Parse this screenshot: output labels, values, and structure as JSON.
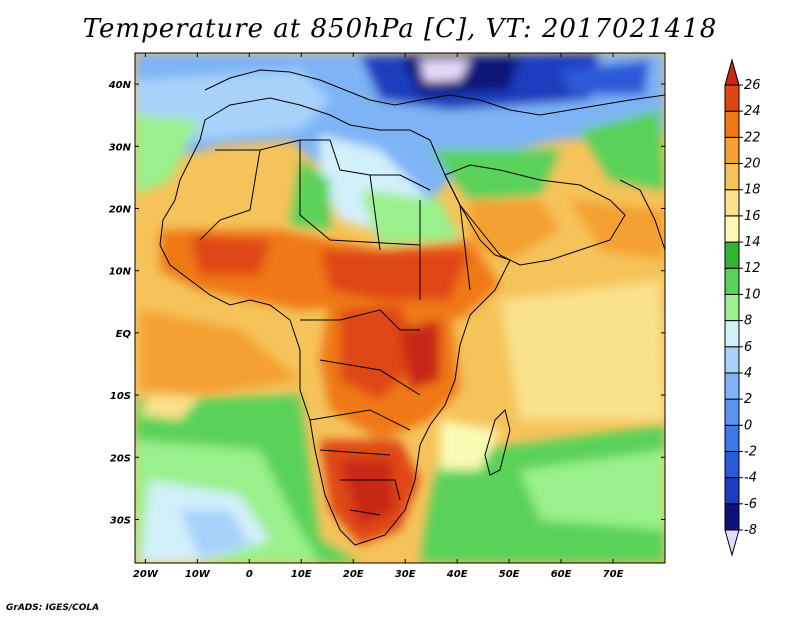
{
  "title": "Temperature at 850hPa [C], VT: 2017021418",
  "credit": "GrADS: IGES/COLA",
  "map": {
    "lon_range": [
      -22,
      80
    ],
    "lat_range": [
      -37,
      45
    ],
    "lon_ticks": [
      {
        "lon": -20,
        "label": "20W"
      },
      {
        "lon": -10,
        "label": "10W"
      },
      {
        "lon": 0,
        "label": "0"
      },
      {
        "lon": 10,
        "label": "10E"
      },
      {
        "lon": 20,
        "label": "20E"
      },
      {
        "lon": 30,
        "label": "30E"
      },
      {
        "lon": 40,
        "label": "40E"
      },
      {
        "lon": 50,
        "label": "50E"
      },
      {
        "lon": 60,
        "label": "60E"
      },
      {
        "lon": 70,
        "label": "70E"
      }
    ],
    "lat_ticks": [
      {
        "lat": 40,
        "label": "40N"
      },
      {
        "lat": 30,
        "label": "30N"
      },
      {
        "lat": 20,
        "label": "20N"
      },
      {
        "lat": 10,
        "label": "10N"
      },
      {
        "lat": 0,
        "label": "EQ"
      },
      {
        "lat": -10,
        "label": "10S"
      },
      {
        "lat": -20,
        "label": "20S"
      },
      {
        "lat": -30,
        "label": "30S"
      }
    ]
  },
  "colorbar": {
    "levels": [
      "-8",
      "-6",
      "-4",
      "-2",
      "0",
      "2",
      "4",
      "6",
      "8",
      "10",
      "12",
      "14",
      "16",
      "18",
      "20",
      "22",
      "24",
      "26"
    ],
    "colors": [
      "#e6dcfa",
      "#0c1478",
      "#1e3cbe",
      "#2a5ad8",
      "#3c78e6",
      "#5a96f0",
      "#7eb4f6",
      "#a8d2fa",
      "#d2f0fa",
      "#9af08c",
      "#5ad25a",
      "#32b432",
      "#fafab4",
      "#fae18c",
      "#f5c35a",
      "#f5a032",
      "#f07814",
      "#e04614",
      "#c82814"
    ]
  }
}
